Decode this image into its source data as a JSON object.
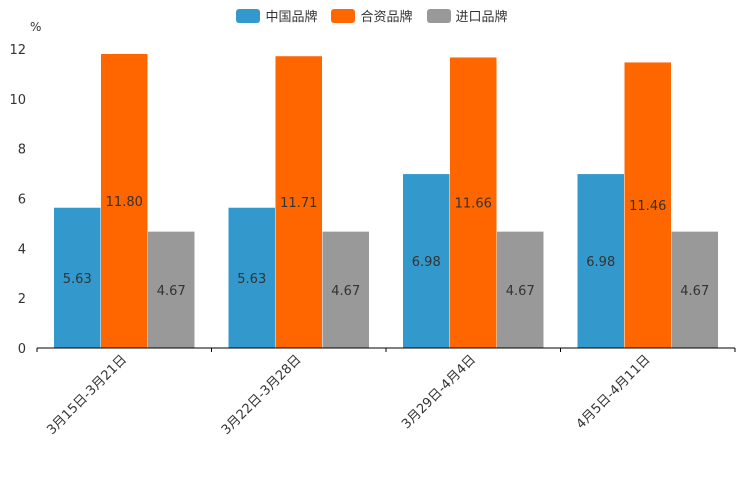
{
  "chart_data": {
    "type": "bar",
    "title": "",
    "ylabel": "%",
    "xlabel": "",
    "ylim": [
      0,
      12
    ],
    "yticks": [
      0,
      2,
      4,
      6,
      8,
      10,
      12
    ],
    "categories": [
      "3月15日-3月21日",
      "3月22日-3月28日",
      "3月29日-4月4日",
      "4月5日-4月11日"
    ],
    "series": [
      {
        "name": "中国品牌",
        "color": "#3399CC",
        "values": [
          5.63,
          5.63,
          6.98,
          6.98
        ],
        "labels": [
          "5.63",
          "5.63",
          "6.98",
          "6.98"
        ]
      },
      {
        "name": "合资品牌",
        "color": "#FF6600",
        "values": [
          11.8,
          11.71,
          11.66,
          11.46
        ],
        "labels": [
          "11.80",
          "11.71",
          "11.66",
          "11.46"
        ]
      },
      {
        "name": "进口品牌",
        "color": "#999999",
        "values": [
          4.67,
          4.67,
          4.67,
          4.67
        ],
        "labels": [
          "4.67",
          "4.67",
          "4.67",
          "4.67"
        ]
      }
    ],
    "legend_position": "top"
  }
}
